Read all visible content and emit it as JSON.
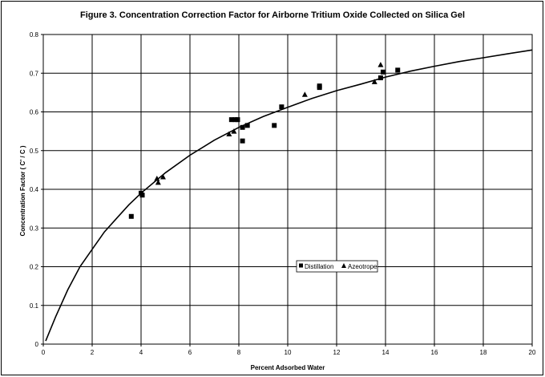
{
  "chart_data": {
    "type": "scatter",
    "title": "Figure 3. Concentration Correction Factor for Airborne Tritium Oxide Collected on Silica Gel",
    "xlabel": "Percent Adsorbed Water",
    "ylabel": "Concentration Factor ( C' / C )",
    "xlim": [
      0,
      20
    ],
    "ylim": [
      0,
      0.8
    ],
    "xticks": [
      "0",
      "2",
      "4",
      "6",
      "8",
      "10",
      "12",
      "14",
      "16",
      "18",
      "20"
    ],
    "yticks": [
      "0",
      "0.1",
      "0.2",
      "0.3",
      "0.4",
      "0.5",
      "0.6",
      "0.7",
      "0.8"
    ],
    "grid": true,
    "legend_position": "lower-right-center",
    "series": [
      {
        "name": "Distillation",
        "marker": "square",
        "points": [
          [
            3.6,
            0.33
          ],
          [
            4.0,
            0.39
          ],
          [
            4.05,
            0.385
          ],
          [
            7.7,
            0.58
          ],
          [
            7.85,
            0.58
          ],
          [
            7.95,
            0.58
          ],
          [
            8.15,
            0.525
          ],
          [
            8.15,
            0.56
          ],
          [
            8.35,
            0.565
          ],
          [
            9.45,
            0.565
          ],
          [
            9.75,
            0.613
          ],
          [
            11.3,
            0.663
          ],
          [
            11.3,
            0.667
          ],
          [
            13.8,
            0.688
          ],
          [
            13.9,
            0.703
          ],
          [
            14.5,
            0.708
          ]
        ]
      },
      {
        "name": "Azeotrope",
        "marker": "triangle",
        "points": [
          [
            4.65,
            0.428
          ],
          [
            4.7,
            0.418
          ],
          [
            4.9,
            0.432
          ],
          [
            7.6,
            0.543
          ],
          [
            7.8,
            0.55
          ],
          [
            10.7,
            0.645
          ],
          [
            13.55,
            0.678
          ],
          [
            13.8,
            0.722
          ]
        ]
      },
      {
        "marker": "line",
        "fit_curve": [
          [
            0.1,
            0.008
          ],
          [
            0.5,
            0.07
          ],
          [
            1,
            0.14
          ],
          [
            1.5,
            0.2
          ],
          [
            2,
            0.245
          ],
          [
            2.5,
            0.29
          ],
          [
            3,
            0.325
          ],
          [
            3.5,
            0.36
          ],
          [
            4,
            0.39
          ],
          [
            5,
            0.443
          ],
          [
            6,
            0.488
          ],
          [
            7,
            0.527
          ],
          [
            8,
            0.56
          ],
          [
            9,
            0.588
          ],
          [
            10,
            0.612
          ],
          [
            11,
            0.635
          ],
          [
            12,
            0.655
          ],
          [
            13,
            0.672
          ],
          [
            14,
            0.69
          ],
          [
            15,
            0.705
          ],
          [
            16,
            0.718
          ],
          [
            17,
            0.73
          ],
          [
            18,
            0.74
          ],
          [
            19,
            0.75
          ],
          [
            20,
            0.76
          ]
        ]
      }
    ]
  }
}
